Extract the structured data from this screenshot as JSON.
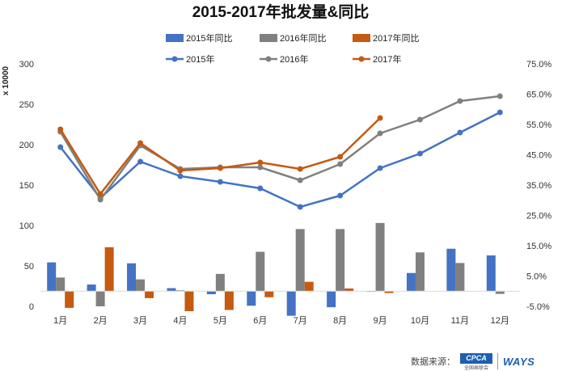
{
  "chart_data": {
    "type": "bar+line",
    "title": "2015-2017年批发量&同比",
    "categories": [
      "1月",
      "2月",
      "3月",
      "4月",
      "5月",
      "6月",
      "7月",
      "8月",
      "9月",
      "10月",
      "11月",
      "12月"
    ],
    "y_left": {
      "label": "x 10000",
      "min": 0,
      "max": 300,
      "ticks": [
        "0",
        "50",
        "100",
        "150",
        "200",
        "250",
        "300"
      ]
    },
    "y_right": {
      "min": -5,
      "max": 75,
      "ticks": [
        "-5.0%",
        "5.0%",
        "15.0%",
        "25.0%",
        "35.0%",
        "45.0%",
        "55.0%",
        "65.0%",
        "75.0%"
      ]
    },
    "bar_series": [
      {
        "name": "2015年同比",
        "color": "#4472C4",
        "values": [
          9.5,
          2.2,
          9.2,
          1.0,
          -1.0,
          -4.8,
          -8.1,
          -5.3,
          0.0,
          6.0,
          14.0,
          11.8
        ]
      },
      {
        "name": "2016年同比",
        "color": "#808080",
        "values": [
          4.5,
          -5.0,
          3.9,
          0.3,
          5.7,
          13.0,
          20.5,
          20.5,
          22.5,
          12.8,
          9.3,
          -0.9
        ]
      },
      {
        "name": "2017年同比",
        "color": "#C55A11",
        "values": [
          -5.5,
          14.5,
          -2.3,
          -6.6,
          -6.2,
          -2.0,
          3.1,
          0.9,
          -0.6,
          null,
          null,
          null
        ]
      }
    ],
    "line_series": [
      {
        "name": "2015年",
        "color": "#4472C4",
        "values": [
          197,
          134,
          179,
          161,
          154,
          146,
          123,
          137,
          171,
          189,
          215,
          240
        ]
      },
      {
        "name": "2016年",
        "color": "#808080",
        "values": [
          216,
          132,
          199,
          170,
          172,
          172,
          156,
          176,
          214,
          231,
          254,
          260
        ]
      },
      {
        "name": "2017年",
        "color": "#C55A11",
        "values": [
          219,
          139,
          202,
          168,
          171,
          178,
          170,
          185,
          233,
          null,
          null,
          null
        ]
      }
    ],
    "legend_placement": "top"
  },
  "footer": {
    "source_label": "数据来源：",
    "cpca_text": "CPCA",
    "cpca_sub": "全国乘联会",
    "ways_text": "WAYS"
  }
}
